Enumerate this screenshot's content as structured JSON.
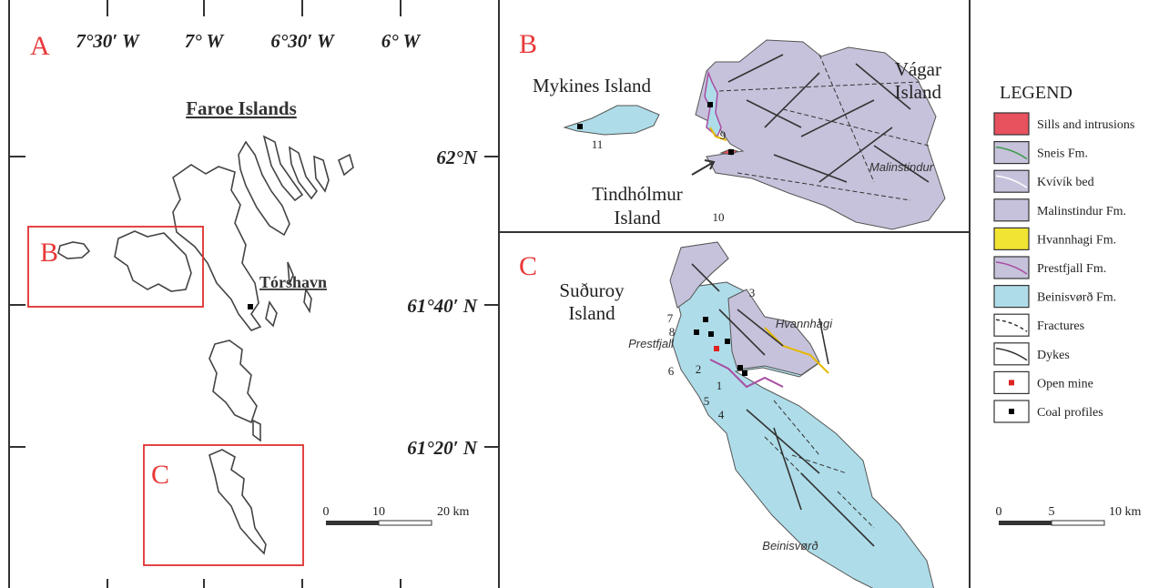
{
  "panel_a": {
    "label": "A",
    "longitudes": [
      "7°30′ W",
      "7° W",
      "6°30′ W",
      "6° W"
    ],
    "latitudes": [
      "62°N",
      "61°40′ N",
      "61°20′ N"
    ],
    "title": "Faroe Islands",
    "capital": "Tórshavn",
    "inset_b": "B",
    "inset_c": "C",
    "scale": [
      "0",
      "10",
      "20 km"
    ]
  },
  "panel_b": {
    "label": "B",
    "mykines": "Mykines Island",
    "vagar": [
      "Vágar",
      "Island"
    ],
    "tindholmur": [
      "Tindhólmur",
      "Island"
    ],
    "malinstindur": "Malinstindur",
    "sites": [
      "9",
      "10",
      "11"
    ]
  },
  "panel_c": {
    "label": "C",
    "suduroy": [
      "Suðuroy",
      "Island"
    ],
    "prestfjall": "Prestfjall",
    "hvannhagi": "Hvannhagi",
    "beinisvord": "Beinisvørð",
    "sites": [
      "1",
      "2",
      "3",
      "4",
      "5",
      "6",
      "7",
      "8"
    ]
  },
  "legend": {
    "title": "LEGEND",
    "items": [
      "Sills and intrusions",
      "Sneis Fm.",
      "Kvívík bed",
      "Malinstindur Fm.",
      "Hvannhagi Fm.",
      "Prestfjall Fm.",
      "Beinisvørð Fm.",
      "Fractures",
      "Dykes",
      "Open mine",
      "Coal profiles"
    ],
    "scale": [
      "0",
      "5",
      "10 km"
    ]
  }
}
